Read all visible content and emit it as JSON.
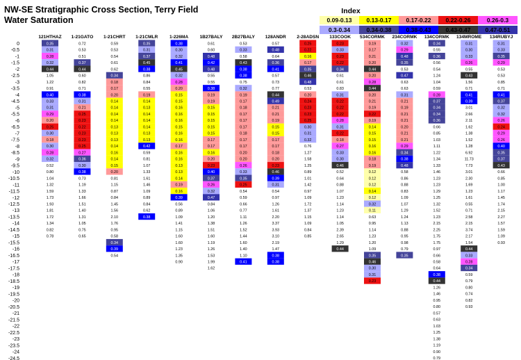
{
  "title_line1": "NW-SE Stratigraphic Cross Section, Terry Field",
  "title_line2": "Water Saturation",
  "colors": {
    "c1": "#ffff00",
    "c2": "#ffff00",
    "c3": "#ff9999",
    "c4": "#ff0000",
    "c5": "#ff00ff",
    "c6": "#aaaaff",
    "c7": "#333399",
    "c8": "#0000ff",
    "c9": "#333366",
    "c10": "#2d2d5a"
  },
  "legend": {
    "title": "Index",
    "items": [
      {
        "label": "0.09-0.13",
        "color": "#ffffaa",
        "text": "#000000"
      },
      {
        "label": "0.13-0.17",
        "color": "#ffff00",
        "text": "#000000"
      },
      {
        "label": "0.17-0.22",
        "color": "#ff9999",
        "text": "#000000"
      },
      {
        "label": "0.22-0.26",
        "color": "#ee1111",
        "text": "#000000"
      },
      {
        "label": "0.26-0.3",
        "color": "#ff55ff",
        "text": "#000000"
      },
      {
        "label": "0.3-0.34",
        "color": "#aaaaff",
        "text": "#000000"
      },
      {
        "label": "0.34-0.38",
        "color": "#444499",
        "text": "#000000"
      },
      {
        "label": "0.38-0.43",
        "color": "#0000ff",
        "text": "#000000"
      },
      {
        "label": "0.43-0.47",
        "color": "#333333",
        "text": "#000000"
      },
      {
        "label": "0.47-0.51",
        "color": "#3333aa",
        "text": "#000000"
      }
    ]
  },
  "chart_data": {
    "type": "heatmap",
    "depths": [
      "0",
      "-0.5",
      "-1",
      "-1.5",
      "-2",
      "-2.5",
      "-3",
      "-3.5",
      "-4",
      "-4.5",
      "-5",
      "-5.5",
      "-6",
      "-6.5",
      "-7",
      "-7.5",
      "-8",
      "-8.5",
      "-9",
      "-9.5",
      "-10",
      "-10.5",
      "-11",
      "-11.5",
      "-12",
      "-12.5",
      "-13",
      "-13.5",
      "-14",
      "-14.5",
      "-15",
      "-15.5",
      "-16",
      "-16.5",
      "-17",
      "-17.5",
      "-18",
      "-18.5",
      "-19",
      "-19.5",
      "-20",
      "-20.5",
      "-21",
      "-21.5",
      "-22",
      "-22.5",
      "-23",
      "-23.5",
      "-24",
      "-24.5",
      "-25"
    ],
    "wells": [
      {
        "name": "121HTHAZ",
        "top": 0,
        "values": [
          0.35,
          0.31,
          0.28,
          0.32,
          0.44,
          1.05,
          1.22,
          0.91,
          0.4,
          0.33,
          0.31,
          0.29,
          0.2,
          0.25,
          0.3,
          0.18,
          0.3,
          0.28,
          0.32,
          0.52,
          0.8,
          1.04,
          1.32,
          1.59,
          1.73,
          1.93,
          1.81,
          1.72,
          1.34,
          0.82,
          0.78
        ]
      },
      {
        "name": "1-21GATO",
        "top": 0,
        "values": [
          0.72,
          0.53,
          0.51,
          0.37,
          0.44,
          0.6,
          0.82,
          0.71,
          0.38,
          0.31,
          0.21,
          0.25,
          0.23,
          0.22,
          0.23,
          0.23,
          0.25,
          0.27,
          0.36,
          0.3,
          0.38,
          0.73,
          1.19,
          1.33,
          1.66,
          1.51,
          1.4,
          1.31,
          1.05,
          0.75,
          0.65
        ]
      },
      {
        "name": "1-21CHRT",
        "top": 0,
        "values": [
          0.59,
          0.53,
          0.54,
          0.61,
          0.62,
          0.34,
          0.18,
          0.17,
          0.2,
          0.14,
          0.14,
          0.14,
          0.14,
          0.13,
          0.13,
          0.13,
          0.14,
          0.16,
          0.14,
          0.15,
          0.2,
          0.81,
          1.15,
          0.87,
          0.84,
          1.45,
          1.56,
          2.1,
          1.76,
          0.95,
          0.58,
          0.34,
          0.39,
          0.54
        ]
      },
      {
        "name": "1-21CMLR",
        "top": 0,
        "values": [
          0.35,
          0.31,
          0.37,
          0.45,
          0.38,
          0.86,
          0.84,
          0.55,
          0.19,
          0.14,
          0.13,
          0.14,
          0.14,
          0.14,
          0.13,
          0.13,
          0.42,
          0.59,
          0.81,
          1.07,
          1.33,
          1.61,
          1.46,
          1.09,
          0.89,
          0.84,
          0.62,
          0.38
        ]
      },
      {
        "name": "1-226MA",
        "top": 0,
        "values": [
          0.38,
          0.3,
          0.32,
          0.41,
          0.45,
          0.32,
          0.28,
          0.2,
          0.15,
          0.15,
          0.16,
          0.16,
          0.16,
          0.15,
          0.16,
          0.16,
          0.17,
          0.16,
          0.16,
          0.13,
          0.13,
          0.14,
          0.19,
          0.16,
          0.39,
          0.56,
          0.89,
          1.09,
          1.41,
          1.15,
          1.6,
          1.6,
          1.23,
          1.35,
          0.9
        ]
      },
      {
        "name": "1B27BALY",
        "top": 0,
        "values": [
          0.61,
          0.6,
          0.48,
          0.42,
          0.48,
          0.55,
          0.55,
          0.38,
          0.19,
          0.19,
          0.15,
          0.15,
          0.15,
          0.15,
          0.15,
          0.17,
          0.17,
          0.16,
          0.2,
          0.23,
          0.4,
          0.37,
          0.26,
          0.32,
          0.47,
          0.84,
          1.06,
          1.2,
          1.38,
          1.51,
          1.6,
          1.19,
          1.26,
          1.53,
          1.99,
          1.62
        ]
      },
      {
        "name": "2B27BALY",
        "top": 0,
        "values": [
          0.53,
          0.33,
          0.58,
          0.43,
          0.38,
          0.38,
          0.75,
          0.32,
          0.19,
          0.17,
          0.18,
          0.17,
          0.17,
          0.17,
          0.18,
          0.17,
          0.17,
          0.2,
          0.2,
          0.26,
          0.33,
          0.35,
          0.25,
          0.54,
          0.59,
          0.66,
          0.77,
          1.11,
          1.26,
          1.52,
          1.44,
          1.6,
          1.4,
          1.1,
          0.41
        ]
      },
      {
        "name": "128ANDR",
        "top": 0,
        "values": [
          0.57,
          0.48,
          0.64,
          0.36,
          0.41,
          0.57,
          0.73,
          0.77,
          0.44,
          0.49,
          0.21,
          0.21,
          0.19,
          0.15,
          0.15,
          0.17,
          0.17,
          0.18,
          0.2,
          0.23,
          0.46,
          0.39,
          0.31,
          0.54,
          0.97,
          1.26,
          1.61,
          2.2,
          3.37,
          3.93,
          3.1,
          2.19,
          1.47,
          0.38,
          0.38
        ]
      },
      {
        "name": "2-28ADSN",
        "top": 0,
        "values": [
          0.25,
          0.22,
          0.16,
          0.17,
          0.35,
          0.46,
          0.48,
          0.53,
          0.2,
          0.24,
          0.23,
          0.23,
          0.25,
          0.3,
          0.31,
          0.32,
          0.76,
          1.27,
          1.58,
          1.25,
          0.89,
          1.01,
          1.42,
          0.97,
          1.09,
          1.72,
          1.37,
          1.15,
          1.09,
          0.84,
          0.85
        ]
      },
      {
        "name": "133COOK",
        "top": 0,
        "values": [
          0.23,
          0.33,
          0.23,
          0.22,
          0.34,
          0.61,
          0.61,
          0.83,
          0.31,
          0.22,
          0.22,
          0.22,
          0.28,
          0.31,
          0.22,
          0.18,
          0.27,
          0.33,
          0.3,
          0.46,
          0.52,
          0.64,
          0.88,
          1.07,
          1.23,
          1.14,
          1.23,
          1.14,
          1.05,
          2.39,
          2.65,
          1.29,
          0.44
        ]
      },
      {
        "name": "534CORMK",
        "top": 0,
        "values": [
          0.19,
          0.17,
          0.21,
          0.2,
          0.44,
          0.2,
          0.28,
          0.44,
          0.2,
          0.21,
          0.19,
          0.22,
          0.19,
          0.14,
          0.15,
          0.15,
          0.16,
          0.16,
          0.18,
          0.19,
          0.12,
          0.12,
          0.12,
          0.14,
          0.12,
          0.32,
          0.11,
          0.63,
          0.95,
          1.14,
          1.23,
          1.2,
          1.09,
          0.35,
          0.46,
          0.3,
          0.31,
          0.23
        ]
      },
      {
        "name": "234CORMK",
        "top": 0,
        "values": [
          0.32,
          0.29,
          0.48,
          0.35,
          0.53,
          0.47,
          0.63,
          0.63,
          0.31,
          0.21,
          0.19,
          0.21,
          0.21,
          0.2,
          0.21,
          0.21,
          0.29,
          0.34,
          0.38,
          0.48,
          0.58,
          0.86,
          0.88,
          0.83,
          1.09,
          1.07,
          1.29,
          1.24,
          1.13,
          0.88,
          0.95,
          0.98,
          0.79,
          0.35
        ]
      },
      {
        "name": "134CORMK",
        "top": 0,
        "values": [
          0.34,
          0.55,
          0.36,
          0.56,
          0.54,
          1.24,
          1.04,
          0.59,
          0.28,
          0.37,
          0.34,
          0.34,
          0.36,
          0.66,
          0.85,
          1.03,
          1.11,
          1.22,
          1.34,
          1.33,
          1.46,
          1.23,
          1.23,
          1.29,
          1.25,
          1.32,
          1.52,
          1.23,
          2.15,
          2.25,
          1.75,
          1.75,
          0.97,
          0.66,
          0.58,
          0.64,
          0.38,
          0.44,
          1.26,
          1.46,
          0.95,
          0.8,
          0.57,
          0.63,
          1.03,
          1.25,
          1.38,
          1.19,
          0.9,
          0.79,
          0.75
        ]
      },
      {
        "name": "134MROME",
        "top": 0,
        "values": [
          0.31,
          0.3,
          0.33,
          0.26,
          0.55,
          0.43,
          1.56,
          0.71,
          0.41,
          0.39,
          3.01,
          2.66,
          2.11,
          1.62,
          1.38,
          1.52,
          1.28,
          6.92,
          11.73,
          7.73,
          3.01,
          2.3,
          1.69,
          1.23,
          1.61,
          0.55,
          0.71,
          2.58,
          2.15,
          3.74,
          2.17,
          1.54,
          0.44,
          0.33,
          0.28,
          0.34,
          0.59,
          0.79,
          0.8,
          0.74,
          0.82,
          0.93
        ]
      },
      {
        "name": "134RUBYJ",
        "top": 0,
        "values": [
          0.31,
          0.33,
          0.35,
          0.29,
          0.53,
          0.53,
          0.85,
          0.71,
          0.41,
          0.37,
          0.32,
          0.32,
          0.26,
          0.24,
          0.29,
          0.26,
          0.4,
          0.35,
          0.37,
          0.43,
          0.66,
          0.85,
          1.0,
          1.17,
          1.45,
          1.74,
          2.15,
          2.27,
          1.57,
          1.59,
          1.09,
          0.93
        ]
      }
    ]
  }
}
